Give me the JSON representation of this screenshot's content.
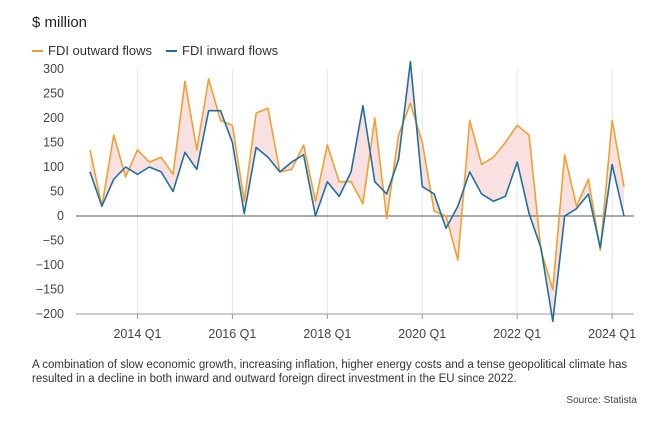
{
  "unit_label": "$ million",
  "legend": [
    {
      "name": "FDI outward flows",
      "color": "#f0a030"
    },
    {
      "name": "FDI inward flows",
      "color": "#1f6fa0"
    }
  ],
  "caption": "A combination of slow economic growth, increasing inflation, higher energy costs and a tense geopolitical climate has resulted in a decline in both inward and outward foreign direct investment in the EU since 2022.",
  "source": "Source: Statista",
  "fill_color": "#f9dcdc",
  "chart_data": {
    "type": "line",
    "ylim": [
      -200,
      300
    ],
    "xlim": [
      "2013 Q1",
      "2024 Q2"
    ],
    "yticks": [
      300,
      250,
      200,
      150,
      100,
      50,
      0,
      -50,
      -100,
      -150,
      -200
    ],
    "xticks": [
      "2014 Q1",
      "2016 Q1",
      "2018 Q1",
      "2020 Q1",
      "2022 Q1",
      "2024 Q1"
    ],
    "grid": "vertical",
    "legend_position": "top-left",
    "x": [
      "2013 Q1",
      "2013 Q2",
      "2013 Q3",
      "2013 Q4",
      "2014 Q1",
      "2014 Q2",
      "2014 Q3",
      "2014 Q4",
      "2015 Q1",
      "2015 Q2",
      "2015 Q3",
      "2015 Q4",
      "2016 Q1",
      "2016 Q2",
      "2016 Q3",
      "2016 Q4",
      "2017 Q1",
      "2017 Q2",
      "2017 Q3",
      "2017 Q4",
      "2018 Q1",
      "2018 Q2",
      "2018 Q3",
      "2018 Q4",
      "2019 Q1",
      "2019 Q2",
      "2019 Q3",
      "2019 Q4",
      "2020 Q1",
      "2020 Q2",
      "2020 Q3",
      "2020 Q4",
      "2021 Q1",
      "2021 Q2",
      "2021 Q3",
      "2021 Q4",
      "2022 Q1",
      "2022 Q2",
      "2022 Q3",
      "2022 Q4",
      "2023 Q1",
      "2023 Q2",
      "2023 Q3",
      "2023 Q4",
      "2024 Q1",
      "2024 Q2"
    ],
    "series": [
      {
        "name": "FDI outward flows",
        "color": "#f0a030",
        "values": [
          135,
          20,
          165,
          80,
          135,
          110,
          120,
          85,
          275,
          135,
          280,
          195,
          185,
          30,
          210,
          220,
          90,
          95,
          145,
          30,
          145,
          70,
          70,
          25,
          200,
          -5,
          165,
          230,
          150,
          10,
          0,
          -90,
          195,
          105,
          120,
          150,
          185,
          165,
          -70,
          -150,
          125,
          20,
          75,
          -70,
          195,
          60
        ]
      },
      {
        "name": "FDI inward flows",
        "color": "#1f6fa0",
        "values": [
          90,
          20,
          75,
          100,
          85,
          100,
          90,
          50,
          130,
          95,
          215,
          215,
          150,
          5,
          140,
          120,
          90,
          110,
          125,
          0,
          70,
          40,
          90,
          225,
          70,
          45,
          115,
          315,
          60,
          45,
          -25,
          20,
          90,
          45,
          30,
          40,
          110,
          5,
          -65,
          -215,
          0,
          15,
          45,
          -65,
          105,
          0
        ]
      }
    ]
  }
}
